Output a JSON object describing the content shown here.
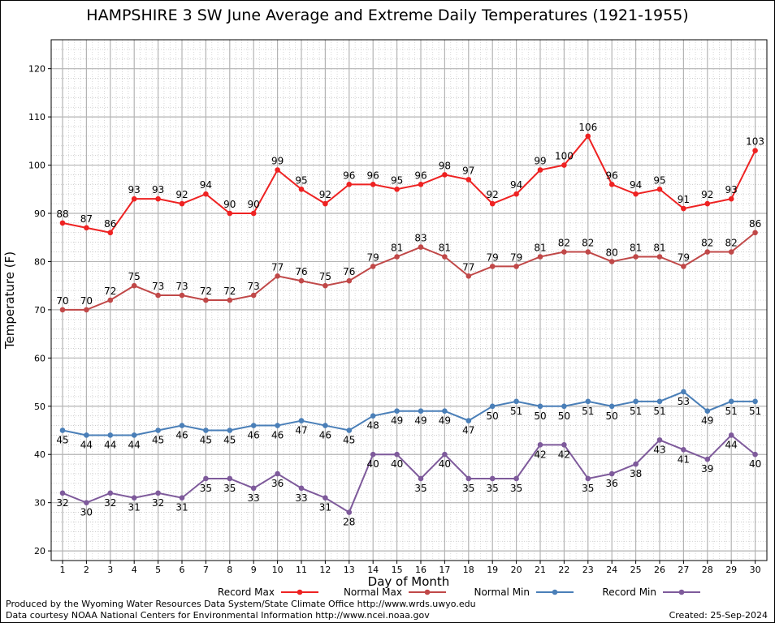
{
  "chart_data": {
    "type": "line",
    "title": "HAMPSHIRE 3 SW June Average and Extreme Daily Temperatures (1921-1955)",
    "xlabel": "Day of Month",
    "ylabel": "Temperature (F)",
    "x": [
      1,
      2,
      3,
      4,
      5,
      6,
      7,
      8,
      9,
      10,
      11,
      12,
      13,
      14,
      15,
      16,
      17,
      18,
      19,
      20,
      21,
      22,
      23,
      24,
      25,
      26,
      27,
      28,
      29,
      30
    ],
    "ylim": [
      18,
      126
    ],
    "yticks": [
      20,
      30,
      40,
      50,
      60,
      70,
      80,
      90,
      100,
      110,
      120
    ],
    "grid": true,
    "legend_position": "bottom",
    "series": [
      {
        "name": "Record Max",
        "color": "#ee2222",
        "values": [
          88,
          87,
          86,
          93,
          93,
          92,
          94,
          90,
          90,
          99,
          95,
          92,
          96,
          96,
          95,
          96,
          98,
          97,
          92,
          94,
          99,
          100,
          106,
          96,
          94,
          95,
          91,
          92,
          93,
          103
        ]
      },
      {
        "name": "Normal Max",
        "color": "#c04848",
        "values": [
          70,
          70,
          72,
          75,
          73,
          73,
          72,
          72,
          73,
          77,
          76,
          75,
          76,
          79,
          81,
          83,
          81,
          77,
          79,
          79,
          81,
          82,
          82,
          80,
          81,
          81,
          79,
          82,
          82,
          86
        ]
      },
      {
        "name": "Normal Min",
        "color": "#4a7fb8",
        "values": [
          45,
          44,
          44,
          44,
          45,
          46,
          45,
          45,
          46,
          46,
          47,
          46,
          45,
          48,
          49,
          49,
          49,
          47,
          50,
          51,
          50,
          50,
          51,
          50,
          51,
          51,
          53,
          49,
          51,
          51
        ]
      },
      {
        "name": "Record Min",
        "color": "#7e5a9b",
        "values": [
          32,
          30,
          32,
          31,
          32,
          31,
          35,
          35,
          33,
          36,
          33,
          31,
          28,
          40,
          40,
          35,
          40,
          35,
          35,
          35,
          42,
          42,
          35,
          36,
          38,
          43,
          41,
          39,
          44,
          40
        ]
      }
    ]
  },
  "footer": {
    "produced_by": "Produced by the Wyoming Water Resources Data System/State Climate Office http://www.wrds.uwyo.edu",
    "courtesy": "Data courtesy NOAA National Centers for Environmental Information http://www.ncei.noaa.gov",
    "created": "Created:  25-Sep-2024"
  }
}
